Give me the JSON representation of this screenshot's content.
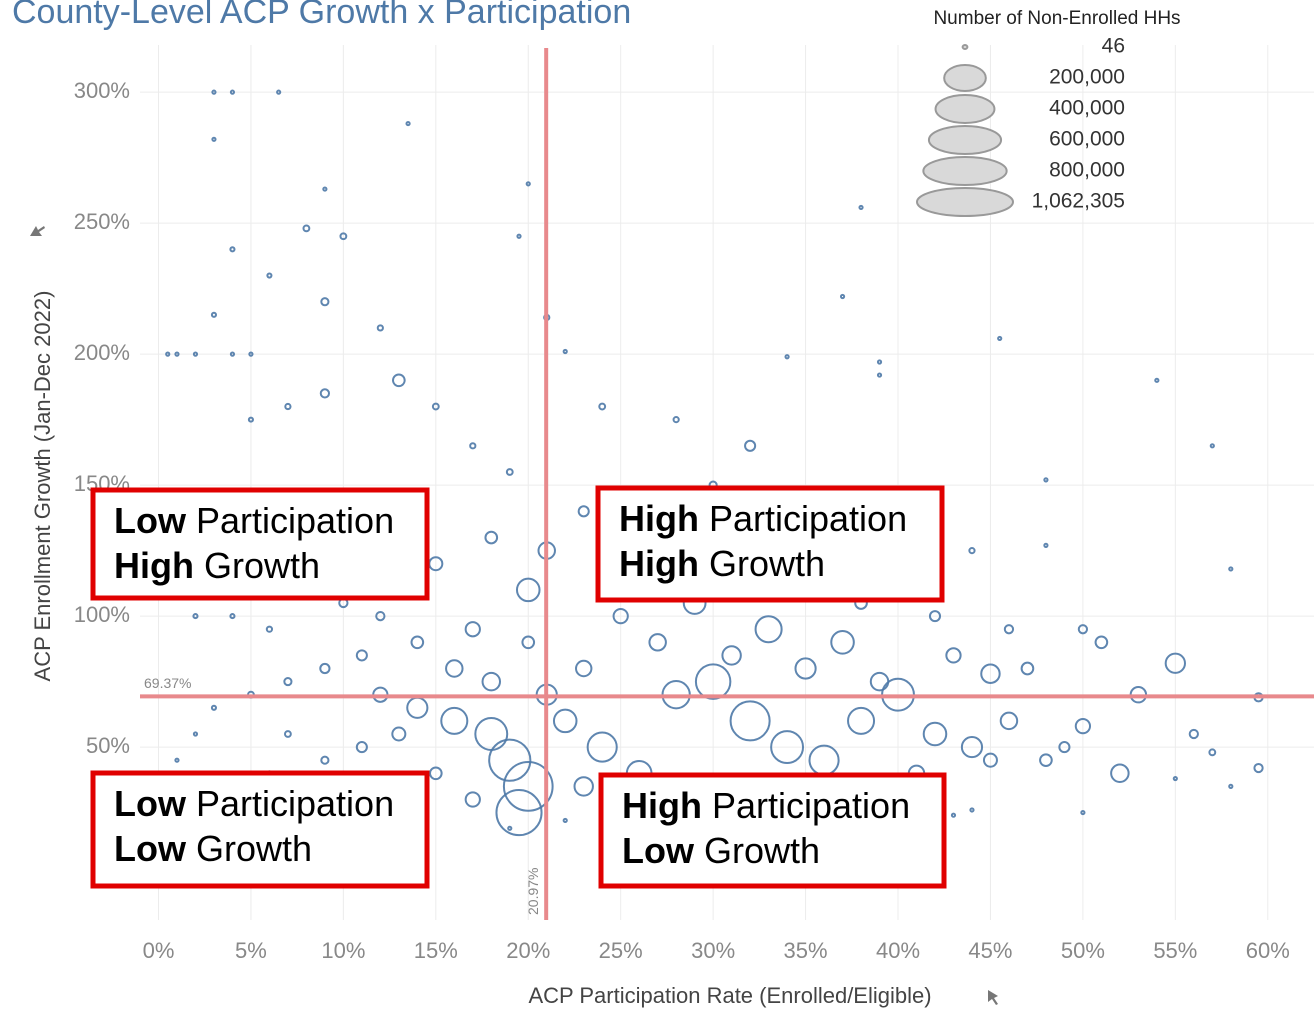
{
  "chart_data": {
    "type": "scatter",
    "title": "County-Level ACP Growth x Participation",
    "x_label": "ACP Participation Rate (Enrolled/Eligible)",
    "y_label": "ACP Enrollment Growth  (Jan-Dec 2022)",
    "color": "#4e79a7",
    "xlim": [
      -1,
      62.5
    ],
    "ylim": [
      -16,
      318
    ],
    "xticks": [
      {
        "value": 0,
        "label": "0%"
      },
      {
        "value": 5,
        "label": "5%"
      },
      {
        "value": 10,
        "label": "10%"
      },
      {
        "value": 15,
        "label": "15%"
      },
      {
        "value": 20,
        "label": "20%"
      },
      {
        "value": 25,
        "label": "25%"
      },
      {
        "value": 30,
        "label": "30%"
      },
      {
        "value": 35,
        "label": "35%"
      },
      {
        "value": 40,
        "label": "40%"
      },
      {
        "value": 45,
        "label": "45%"
      },
      {
        "value": 50,
        "label": "50%"
      },
      {
        "value": 55,
        "label": "55%"
      },
      {
        "value": 60,
        "label": "60%"
      }
    ],
    "yticks": [
      {
        "value": 50,
        "label": "50%"
      },
      {
        "value": 100,
        "label": "100%"
      },
      {
        "value": 150,
        "label": "150%"
      },
      {
        "value": 200,
        "label": "200%"
      },
      {
        "value": 250,
        "label": "250%"
      },
      {
        "value": 300,
        "label": "300%"
      }
    ],
    "grid": true,
    "reference_lines": [
      {
        "axis": "x",
        "value": 20.97,
        "label": "20.97%"
      },
      {
        "axis": "y",
        "value": 69.37,
        "label": "69.37%"
      }
    ],
    "size_legend": {
      "title": "Number of Non-Enrolled HHs",
      "values": [
        46,
        200000,
        400000,
        600000,
        800000,
        1062305
      ],
      "value_labels": [
        "46",
        "200,000",
        "400,000",
        "600,000",
        "800,000",
        "1,062,305"
      ]
    },
    "annotations": [
      {
        "lines": [
          [
            "Low",
            "Participation"
          ],
          [
            "High",
            "Growth"
          ]
        ]
      },
      {
        "lines": [
          [
            "High",
            "Participation"
          ],
          [
            "High",
            "Growth"
          ]
        ]
      },
      {
        "lines": [
          [
            "Low",
            "Participation"
          ],
          [
            "Low",
            "Growth"
          ]
        ]
      },
      {
        "lines": [
          [
            "High",
            "Participation"
          ],
          [
            "Low",
            "Growth"
          ]
        ]
      }
    ],
    "x": [
      3,
      4,
      6.5,
      13.5,
      3,
      20,
      9,
      19.5,
      38,
      37,
      45.5,
      54,
      57,
      0.5,
      1,
      2,
      4,
      5,
      21,
      22,
      34,
      39,
      39,
      48,
      48,
      58,
      59.5,
      59.5,
      58,
      55,
      50,
      44,
      43,
      19,
      22,
      24,
      26,
      12,
      14,
      16,
      18,
      19,
      20,
      19.5,
      22,
      24,
      26,
      28,
      30,
      32,
      34,
      36,
      38,
      40,
      42,
      44,
      46,
      50,
      53,
      55,
      52,
      48,
      45,
      37,
      33,
      29,
      25,
      21,
      20,
      17,
      14,
      11,
      9,
      7,
      5,
      3,
      2,
      4,
      6,
      8,
      10,
      13,
      15,
      18,
      23,
      26,
      30,
      32,
      28,
      24,
      15,
      13,
      9,
      7,
      5,
      12,
      9,
      8,
      10,
      6,
      4,
      3,
      25,
      27,
      31,
      35,
      39,
      43,
      47,
      51,
      16,
      18,
      21,
      23,
      13,
      11,
      9,
      7,
      15,
      17,
      23,
      27,
      31,
      35,
      41,
      45,
      49,
      56,
      57,
      1,
      2,
      3,
      6,
      10,
      14,
      12,
      20,
      34,
      38,
      42,
      46,
      50,
      41,
      44,
      36,
      19,
      17
    ],
    "values": [
      300,
      300,
      300,
      288,
      282,
      265,
      263,
      245,
      256,
      222,
      206,
      190,
      165,
      200,
      200,
      200,
      200,
      200,
      214,
      201,
      199,
      197,
      192,
      152,
      127,
      118,
      69,
      42,
      35,
      38,
      25,
      26,
      24,
      19,
      22,
      27,
      27,
      70,
      65,
      60,
      55,
      45,
      35,
      25,
      60,
      50,
      40,
      70,
      75,
      60,
      50,
      45,
      60,
      70,
      55,
      50,
      60,
      58,
      70,
      82,
      40,
      45,
      78,
      90,
      95,
      105,
      110,
      125,
      110,
      95,
      90,
      85,
      80,
      75,
      70,
      65,
      100,
      100,
      95,
      110,
      105,
      115,
      120,
      130,
      140,
      145,
      150,
      165,
      175,
      180,
      180,
      190,
      185,
      180,
      175,
      210,
      220,
      248,
      245,
      230,
      240,
      215,
      100,
      90,
      85,
      80,
      75,
      85,
      80,
      90,
      80,
      75,
      70,
      80,
      55,
      50,
      45,
      55,
      40,
      30,
      35,
      30,
      35,
      30,
      40,
      45,
      50,
      55,
      48,
      45,
      55,
      30,
      40,
      30,
      30,
      100,
      90,
      110,
      105,
      100,
      95,
      95,
      120,
      125,
      130,
      155,
      165
    ],
    "sizes": [
      3000,
      3000,
      3000,
      3000,
      3000,
      3000,
      3000,
      3000,
      3000,
      3000,
      3000,
      3000,
      3000,
      3000,
      3000,
      3000,
      3000,
      3000,
      8000,
      3000,
      3000,
      3000,
      3000,
      3000,
      3000,
      3000,
      20000,
      20000,
      3000,
      3000,
      3000,
      3000,
      3000,
      3000,
      3000,
      3000,
      3000,
      60000,
      120000,
      200000,
      300000,
      500000,
      700000,
      600000,
      150000,
      250000,
      180000,
      220000,
      350000,
      450000,
      300000,
      250000,
      200000,
      300000,
      150000,
      120000,
      80000,
      60000,
      70000,
      110000,
      90000,
      40000,
      100000,
      150000,
      200000,
      140000,
      100000,
      80000,
      150000,
      60000,
      40000,
      30000,
      25000,
      15000,
      10000,
      5000,
      5000,
      5000,
      8000,
      10000,
      20000,
      40000,
      50000,
      40000,
      30000,
      20000,
      15000,
      30000,
      8000,
      10000,
      10000,
      40000,
      20000,
      8000,
      5000,
      8000,
      15000,
      10000,
      10000,
      5000,
      5000,
      5000,
      60000,
      80000,
      100000,
      120000,
      90000,
      60000,
      40000,
      40000,
      80000,
      90000,
      120000,
      70000,
      50000,
      30000,
      15000,
      10000,
      40000,
      60000,
      100000,
      80000,
      60000,
      50000,
      70000,
      50000,
      30000,
      20000,
      10000,
      3000,
      3000,
      3000,
      5000,
      20000,
      30000,
      20000,
      40000,
      50000,
      40000,
      30000,
      20000,
      20000,
      10000,
      8000,
      15000,
      10000,
      8000
    ]
  }
}
